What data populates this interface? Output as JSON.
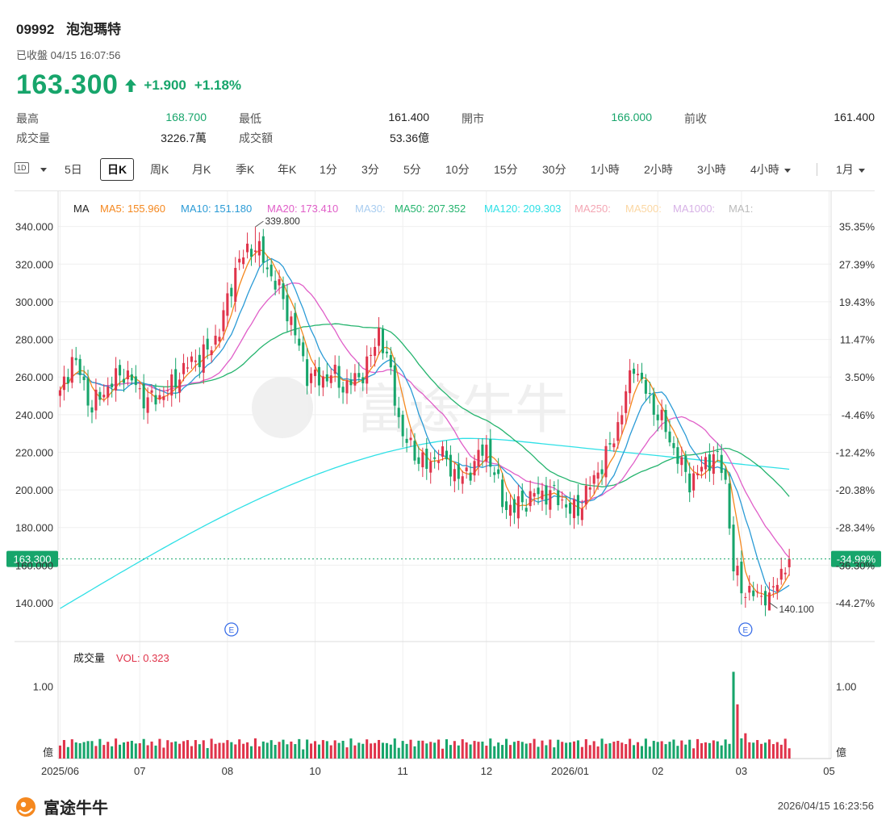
{
  "header": {
    "code": "09992",
    "name": "泡泡瑪特",
    "status": "已收盤 04/15 16:07:56",
    "price": "163.300",
    "change": "+1.900",
    "change_pct": "+1.18%"
  },
  "stats": [
    {
      "label": "最高",
      "value": "168.700",
      "color": "#17a56b"
    },
    {
      "label": "最低",
      "value": "161.400",
      "color": "#222222"
    },
    {
      "label": "開市",
      "value": "166.000",
      "color": "#17a56b"
    },
    {
      "label": "前收",
      "value": "161.400",
      "color": "#222222"
    },
    {
      "label": "成交量",
      "value": "3226.7萬",
      "color": "#222222"
    },
    {
      "label": "成交額",
      "value": "53.36億",
      "color": "#222222"
    }
  ],
  "tabs": {
    "icon_1d": "1D",
    "items": [
      "5日",
      "日K",
      "周K",
      "月K",
      "季K",
      "年K",
      "1分",
      "3分",
      "5分",
      "10分",
      "15分",
      "30分",
      "1小時",
      "2小時",
      "3小時",
      "4小時",
      "1月"
    ],
    "active": "日K"
  },
  "colors": {
    "up": "#e0344b",
    "down": "#17a56b",
    "ma5": "#f5881f",
    "ma10": "#2b9bd6",
    "ma20": "#e05ec8",
    "ma50": "#25b46e",
    "ma120": "#2fe0e6"
  },
  "legend": {
    "title": "MA",
    "items": [
      {
        "label": "MA5: 155.960",
        "color": "#f5881f"
      },
      {
        "label": "MA10: 151.180",
        "color": "#2b9bd6"
      },
      {
        "label": "MA20: 173.410",
        "color": "#e05ec8"
      },
      {
        "label": "MA30:",
        "color": "#a9cdf0"
      },
      {
        "label": "MA50: 207.352",
        "color": "#25b46e"
      },
      {
        "label": "MA120: 209.303",
        "color": "#2fe0e6"
      },
      {
        "label": "MA250:",
        "color": "#f4a7b4"
      },
      {
        "label": "MA500:",
        "color": "#fbd7a3"
      },
      {
        "label": "MA1000:",
        "color": "#d7b2e6"
      },
      {
        "label": "MA1:",
        "color": "#bbbbbb"
      }
    ]
  },
  "volume_legend": {
    "title": "成交量",
    "value": "VOL: 0.323"
  },
  "chart_data": {
    "type": "candlestick",
    "y_ticks": [
      "340.000",
      "320.000",
      "300.000",
      "280.000",
      "260.000",
      "240.000",
      "220.000",
      "200.000",
      "180.000",
      "160.000",
      "140.000"
    ],
    "y_tick_values": [
      340,
      320,
      300,
      280,
      260,
      240,
      220,
      200,
      180,
      160,
      140
    ],
    "pct_ticks": [
      "35.35%",
      "27.39%",
      "19.43%",
      "11.47%",
      "3.50%",
      "-4.46%",
      "-12.42%",
      "-20.38%",
      "-28.34%",
      "-36.30%",
      "-44.27%"
    ],
    "ylim": [
      128,
      348
    ],
    "x_labels": [
      "2025/06",
      "07",
      "08",
      "10",
      "11",
      "12",
      "2026/01",
      "02",
      "03",
      "05"
    ],
    "x_label_positions": [
      0,
      20,
      42,
      64,
      86,
      107,
      128,
      150,
      171,
      193
    ],
    "n_slots": 194,
    "last_price_label": "163.300",
    "last_price_value": 163.3,
    "last_pct_label": "-34.99%",
    "max_label": "339.800",
    "max_value": 339.8,
    "max_index": 49,
    "min_label": "140.100",
    "min_value": 140.1,
    "min_index": 178,
    "earnings_markers": [
      {
        "label": "E",
        "index": 43
      },
      {
        "label": "E",
        "index": 172
      }
    ],
    "anchors": [
      [
        0,
        250
      ],
      [
        3,
        270
      ],
      [
        5,
        262
      ],
      [
        8,
        243
      ],
      [
        10,
        250
      ],
      [
        13,
        257
      ],
      [
        16,
        263
      ],
      [
        19,
        255
      ],
      [
        22,
        247
      ],
      [
        25,
        250
      ],
      [
        28,
        255
      ],
      [
        30,
        262
      ],
      [
        34,
        270
      ],
      [
        37,
        273
      ],
      [
        40,
        285
      ],
      [
        42,
        300
      ],
      [
        44,
        318
      ],
      [
        47,
        327
      ],
      [
        49,
        330
      ],
      [
        52,
        318
      ],
      [
        55,
        306
      ],
      [
        58,
        290
      ],
      [
        60,
        275
      ],
      [
        62,
        262
      ],
      [
        65,
        258
      ],
      [
        68,
        262
      ],
      [
        71,
        255
      ],
      [
        74,
        258
      ],
      [
        76,
        263
      ],
      [
        78,
        270
      ],
      [
        80,
        285
      ],
      [
        82,
        270
      ],
      [
        84,
        250
      ],
      [
        86,
        228
      ],
      [
        89,
        220
      ],
      [
        92,
        212
      ],
      [
        95,
        220
      ],
      [
        98,
        212
      ],
      [
        101,
        205
      ],
      [
        104,
        215
      ],
      [
        107,
        222
      ],
      [
        109,
        210
      ],
      [
        111,
        193
      ],
      [
        114,
        190
      ],
      [
        117,
        195
      ],
      [
        120,
        198
      ],
      [
        123,
        198
      ],
      [
        126,
        195
      ],
      [
        128,
        188
      ],
      [
        130,
        190
      ],
      [
        132,
        198
      ],
      [
        135,
        210
      ],
      [
        138,
        222
      ],
      [
        140,
        235
      ],
      [
        142,
        250
      ],
      [
        144,
        268
      ],
      [
        146,
        256
      ],
      [
        148,
        248
      ],
      [
        150,
        240
      ],
      [
        152,
        232
      ],
      [
        154,
        222
      ],
      [
        156,
        212
      ],
      [
        158,
        205
      ],
      [
        160,
        208
      ],
      [
        162,
        215
      ],
      [
        164,
        218
      ],
      [
        166,
        212
      ],
      [
        167,
        205
      ],
      [
        169,
        158
      ],
      [
        171,
        148
      ],
      [
        173,
        146
      ],
      [
        175,
        143
      ],
      [
        177,
        145
      ],
      [
        178,
        141
      ],
      [
        180,
        152
      ],
      [
        181,
        157
      ],
      [
        182,
        160
      ],
      [
        183,
        163.3
      ]
    ],
    "volume_ticks": [
      "1.00"
    ],
    "volume_unit": "億",
    "volume_ylim": [
      0,
      1.25
    ],
    "volume_max_index": 169,
    "volume_max_value": 1.2
  },
  "footer": {
    "brand": "富途牛牛",
    "timestamp": "2026/04/15 16:23:56"
  }
}
